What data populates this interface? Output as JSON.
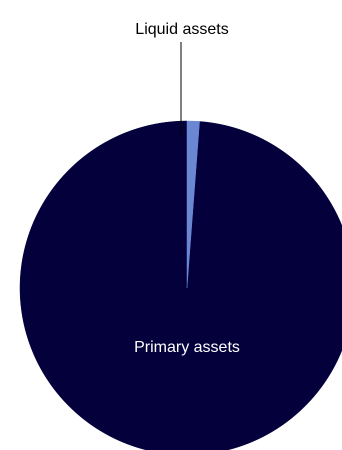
{
  "chart_data": {
    "type": "pie",
    "title": "",
    "legend": "none",
    "slices": [
      {
        "label": "Primary assets",
        "value": 98.8,
        "color": "#03003b",
        "label_color": "#ffffff",
        "label_placement": "inside"
      },
      {
        "label": "Liquid assets",
        "value": 1.2,
        "color": "#6b87d4",
        "label_color": "#000000",
        "label_placement": "outside-leader"
      }
    ]
  }
}
